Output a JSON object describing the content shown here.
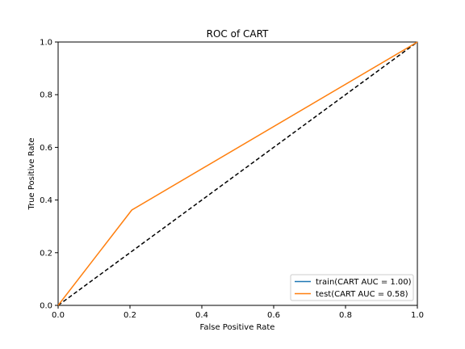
{
  "chart_data": {
    "type": "line",
    "title": "ROC of CART",
    "xlabel": "False Positive Rate",
    "ylabel": "True Positive Rate",
    "xlim": [
      0.0,
      1.0
    ],
    "ylim": [
      0.0,
      1.0
    ],
    "xticks": [
      "0.0",
      "0.2",
      "0.4",
      "0.6",
      "0.8",
      "1.0"
    ],
    "yticks": [
      "0.0",
      "0.2",
      "0.4",
      "0.6",
      "0.8",
      "1.0"
    ],
    "grid": false,
    "legend_position": "lower-right",
    "series": [
      {
        "name": "train(CART AUC = 1.00)",
        "color": "#1f77b4",
        "x": [
          0.0,
          0.0,
          1.0
        ],
        "y": [
          0.0,
          1.0,
          1.0
        ],
        "visible": false
      },
      {
        "name": "test(CART AUC = 0.58)",
        "color": "#ff7f0e",
        "x": [
          0.0,
          0.205,
          1.0
        ],
        "y": [
          0.0,
          0.362,
          1.0
        ]
      }
    ],
    "reference_line": {
      "x": [
        0.0,
        1.0
      ],
      "y": [
        0.0,
        1.0
      ],
      "color": "#000000",
      "style": "dashed"
    }
  }
}
